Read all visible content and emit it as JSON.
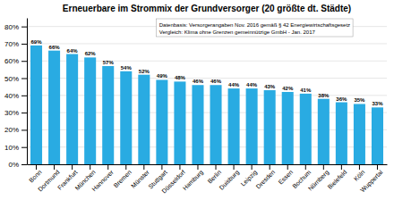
{
  "chart_data": {
    "type": "bar",
    "title": "Erneuerbare im Strommix der Grundversorger (20 größte dt. Städte)",
    "categories": [
      "Bonn",
      "Dortmund",
      "Frankfurt",
      "München",
      "Hannover",
      "Bremen",
      "Münster",
      "Stuttgart",
      "Düsseldorf",
      "Hamburg",
      "Berlin",
      "Duisburg",
      "Leipzig",
      "Dresden",
      "Essen",
      "Bochum",
      "Nürnberg",
      "Bielefeld",
      "Köln",
      "Wuppertal"
    ],
    "values": [
      0.69,
      0.66,
      0.64,
      0.62,
      0.57,
      0.54,
      0.52,
      0.49,
      0.48,
      0.46,
      0.46,
      0.44,
      0.44,
      0.43,
      0.42,
      0.41,
      0.38,
      0.36,
      0.35,
      0.33
    ],
    "value_labels": [
      "69%",
      "66%",
      "64%",
      "62%",
      "57%",
      "54%",
      "52%",
      "49%",
      "48%",
      "46%",
      "46%",
      "44%",
      "44%",
      "43%",
      "42%",
      "41%",
      "38%",
      "36%",
      "35%",
      "33%"
    ],
    "data_labels": true,
    "color": "#29ABE2",
    "ylim": [
      0,
      0.85
    ],
    "yticks": [
      {
        "value": 0.0,
        "label": "0%"
      },
      {
        "value": 0.1,
        "label": "10%"
      },
      {
        "value": 0.2,
        "label": "20%"
      },
      {
        "value": 0.3,
        "label": "30%"
      },
      {
        "value": 0.4,
        "label": "40%"
      },
      {
        "value": 0.5,
        "label": "50%"
      },
      {
        "value": 0.6,
        "label": "60%"
      },
      {
        "value": 0.7,
        "label": "70%"
      },
      {
        "value": 0.8,
        "label": "80%"
      }
    ],
    "grid": true,
    "annotations": [
      "Datenbasis: Versorgerangaben Nov. 2016 gemäß § 42 Energiewirtschaftsgesetz",
      "Vergleich: Klima ohne Grenzen gemeinnützige GmbH - Jan. 2017"
    ]
  }
}
